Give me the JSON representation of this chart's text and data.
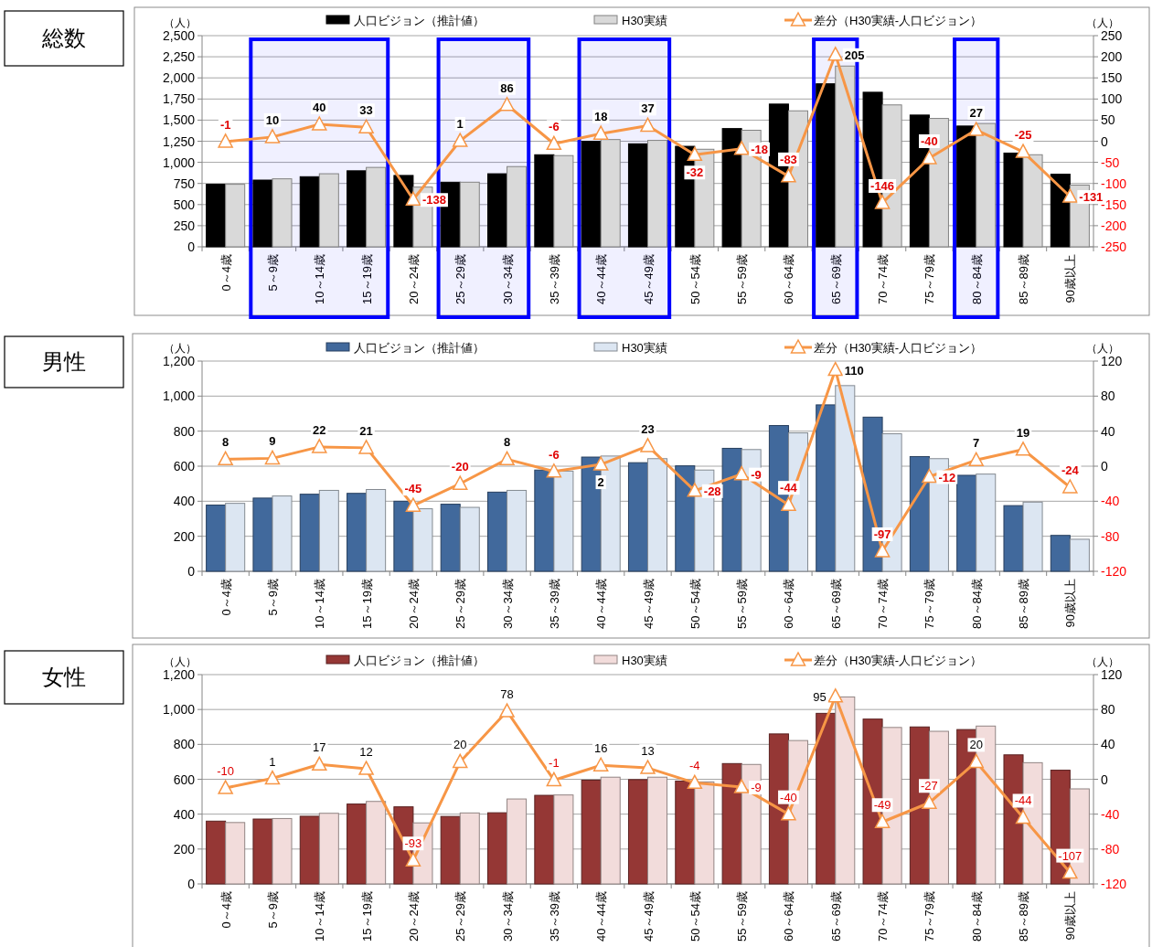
{
  "chart_data": [
    {
      "type": "bar",
      "title": "総数",
      "categories": [
        "0～4歳",
        "5～9歳",
        "10～14歳",
        "15～19歳",
        "20～24歳",
        "25～29歳",
        "30～34歳",
        "35～39歳",
        "40～44歳",
        "45～49歳",
        "50～54歳",
        "55～59歳",
        "60～64歳",
        "65～69歳",
        "70～74歳",
        "75～79歳",
        "80～84歳",
        "85～89歳",
        "90歳以上"
      ],
      "series": [
        {
          "name": "人口ビジョン（推計値）",
          "color": "#000000",
          "values": [
            740,
            790,
            830,
            900,
            845,
            765,
            865,
            1090,
            1250,
            1220,
            1190,
            1400,
            1690,
            1930,
            1830,
            1560,
            1430,
            1110,
            860
          ]
        },
        {
          "name": "H30実績",
          "color": "#d9d9d9",
          "values": [
            740,
            805,
            865,
            940,
            707,
            765,
            950,
            1080,
            1270,
            1260,
            1155,
            1380,
            1610,
            2140,
            1680,
            1520,
            1460,
            1090,
            730
          ]
        },
        {
          "name": "差分（H30実績-人口ビジョン）",
          "type": "line",
          "axis": "y2",
          "color": "#f79646",
          "marker": "triangle",
          "data_labels": true,
          "values": [
            -1,
            10,
            40,
            33,
            -138,
            1,
            86,
            -6,
            18,
            37,
            -32,
            -18,
            -83,
            205,
            -146,
            -40,
            27,
            -25,
            -131
          ]
        }
      ],
      "ylabel": "（人）",
      "y2label": "（人）",
      "ylim": [
        0,
        2500
      ],
      "yticks": [
        0,
        250,
        500,
        750,
        {
          "value": 1000,
          "label": "1,000"
        },
        {
          "value": 1250,
          "label": "1,250"
        },
        {
          "value": 1500,
          "label": "1,500"
        },
        {
          "value": 1750,
          "label": "1,750"
        },
        {
          "value": 2000,
          "label": "2,000"
        },
        {
          "value": 2250,
          "label": "2,250"
        },
        {
          "value": 2500,
          "label": "2,500"
        }
      ],
      "y2lim": [
        -250,
        250
      ],
      "y2ticks": [
        -250,
        -200,
        -150,
        -100,
        -50,
        0,
        50,
        100,
        150,
        200,
        250
      ],
      "grid": "y",
      "legend": "top",
      "bands": [
        {
          "axis": "x",
          "from": "5～9歳",
          "to": "15～19歳",
          "color": "#0000ff"
        },
        {
          "axis": "x",
          "from": "25～29歳",
          "to": "30～34歳",
          "color": "#0000ff"
        },
        {
          "axis": "x",
          "from": "40～44歳",
          "to": "45～49歳",
          "color": "#0000ff"
        },
        {
          "axis": "x",
          "from": "65～69歳",
          "to": "65～69歳",
          "color": "#0000ff"
        },
        {
          "axis": "x",
          "from": "80～84歳",
          "to": "80～84歳",
          "color": "#0000ff"
        }
      ]
    },
    {
      "type": "bar",
      "title": "男性",
      "categories": [
        "0～4歳",
        "5～9歳",
        "10～14歳",
        "15～19歳",
        "20～24歳",
        "25～29歳",
        "30～34歳",
        "35～39歳",
        "40～44歳",
        "45～49歳",
        "50～54歳",
        "55～59歳",
        "60～64歳",
        "65～69歳",
        "70～74歳",
        "75～79歳",
        "80～84歳",
        "85～89歳",
        "90歳以上"
      ],
      "series": [
        {
          "name": "人口ビジョン（推計値）",
          "color": "#41699c",
          "values": [
            378,
            418,
            440,
            445,
            400,
            383,
            452,
            578,
            652,
            620,
            602,
            702,
            832,
            950,
            880,
            655,
            548,
            375,
            205
          ]
        },
        {
          "name": "H30実績",
          "color": "#dce6f2",
          "values": [
            388,
            430,
            462,
            467,
            357,
            365,
            462,
            572,
            658,
            643,
            578,
            695,
            790,
            1060,
            785,
            643,
            555,
            395,
            183
          ]
        },
        {
          "name": "差分（H30実績-人口ビジョン）",
          "type": "line",
          "axis": "y2",
          "color": "#f79646",
          "marker": "triangle",
          "data_labels": true,
          "values": [
            8,
            9,
            22,
            21,
            -45,
            -20,
            8,
            -6,
            2,
            23,
            -28,
            -9,
            -44,
            110,
            -97,
            -12,
            7,
            19,
            -24
          ]
        }
      ],
      "ylabel": "（人）",
      "y2label": "（人）",
      "ylim": [
        0,
        1200
      ],
      "yticks": [
        0,
        200,
        400,
        600,
        800,
        {
          "value": 1000,
          "label": "1,000"
        },
        {
          "value": 1200,
          "label": "1,200"
        }
      ],
      "y2lim": [
        -120,
        120
      ],
      "y2ticks": [
        -120,
        -80,
        -40,
        0,
        40,
        80,
        120
      ],
      "grid": "y",
      "legend": "top"
    },
    {
      "type": "bar",
      "title": "女性",
      "categories": [
        "0～4歳",
        "5～9歳",
        "10～14歳",
        "15～19歳",
        "20～24歳",
        "25～29歳",
        "30～34歳",
        "35～39歳",
        "40～44歳",
        "45～49歳",
        "50～54歳",
        "55～59歳",
        "60～64歳",
        "65～69歳",
        "70～74歳",
        "75～79歳",
        "80～84歳",
        "85～89歳",
        "90歳以上"
      ],
      "series": [
        {
          "name": "人口ビジョン（推計値）",
          "color": "#953735",
          "values": [
            360,
            372,
            388,
            458,
            442,
            387,
            408,
            508,
            595,
            598,
            590,
            690,
            860,
            978,
            945,
            900,
            885,
            740,
            652
          ]
        },
        {
          "name": "H30実績",
          "color": "#f2dcdb",
          "values": [
            352,
            375,
            405,
            473,
            350,
            407,
            487,
            510,
            612,
            612,
            585,
            685,
            822,
            1072,
            897,
            875,
            905,
            695,
            545
          ]
        },
        {
          "name": "差分（H30実績-人口ビジョン）",
          "type": "line",
          "axis": "y2",
          "color": "#f79646",
          "marker": "triangle",
          "data_labels": true,
          "values": [
            -10,
            1,
            17,
            12,
            -93,
            20,
            78,
            -1,
            16,
            13,
            -4,
            -9,
            -40,
            95,
            -49,
            -27,
            20,
            -44,
            -107
          ]
        }
      ],
      "ylabel": "（人）",
      "y2label": "（人）",
      "ylim": [
        0,
        1200
      ],
      "yticks": [
        0,
        200,
        400,
        600,
        800,
        {
          "value": 1000,
          "label": "1,000"
        },
        {
          "value": 1200,
          "label": "1,200"
        }
      ],
      "y2lim": [
        -120,
        120
      ],
      "y2ticks": [
        -120,
        -80,
        -40,
        0,
        40,
        80,
        120
      ],
      "grid": "y",
      "legend": "top"
    }
  ]
}
